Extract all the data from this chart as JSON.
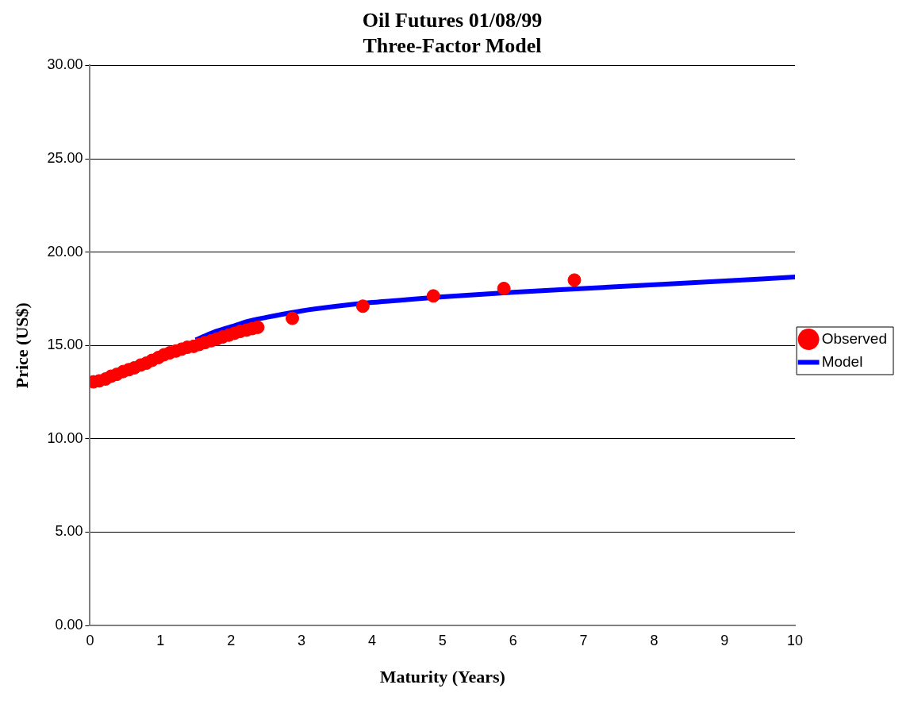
{
  "chart_data": {
    "type": "scatter",
    "title": [
      "Oil Futures 01/08/99",
      "Three-Factor Model"
    ],
    "xlabel": "Maturity (Years)",
    "ylabel": "Price (US$)",
    "xlim": [
      0,
      10
    ],
    "xticks": [
      0,
      1,
      2,
      3,
      4,
      5,
      6,
      7,
      8,
      9,
      10
    ],
    "ylim": [
      0,
      30
    ],
    "yticks": [
      {
        "value": 0,
        "label": "0.00"
      },
      {
        "value": 5,
        "label": "5.00"
      },
      {
        "value": 10,
        "label": "10.00"
      },
      {
        "value": 15,
        "label": "15.00"
      },
      {
        "value": 20,
        "label": "20.00"
      },
      {
        "value": 25,
        "label": "25.00"
      },
      {
        "value": 30,
        "label": "30.00"
      }
    ],
    "grid": "y",
    "legend": "right",
    "series": [
      {
        "name": "Observed",
        "marker": "circle",
        "color": "#ff0000",
        "x": [
          0.05,
          0.13,
          0.22,
          0.3,
          0.38,
          0.47,
          0.55,
          0.63,
          0.72,
          0.8,
          0.88,
          0.97,
          1.05,
          1.13,
          1.22,
          1.3,
          1.38,
          1.47,
          1.55,
          1.63,
          1.72,
          1.8,
          1.88,
          1.97,
          2.05,
          2.13,
          2.22,
          2.3,
          2.38,
          2.87,
          3.87,
          4.87,
          5.87,
          6.87
        ],
        "values": [
          13.05,
          13.1,
          13.2,
          13.35,
          13.45,
          13.6,
          13.7,
          13.8,
          13.95,
          14.05,
          14.2,
          14.35,
          14.5,
          14.6,
          14.7,
          14.8,
          14.9,
          14.95,
          15.05,
          15.15,
          15.25,
          15.35,
          15.45,
          15.55,
          15.65,
          15.75,
          15.82,
          15.9,
          15.97,
          16.45,
          17.1,
          17.65,
          18.05,
          18.5
        ]
      },
      {
        "name": "Model",
        "type": "line",
        "marker": "none",
        "line_style": "solid",
        "color": "#0000ff",
        "x": [
          1.5,
          1.75,
          2,
          2.25,
          2.5,
          3,
          3.5,
          4,
          4.5,
          5,
          6,
          7,
          8,
          9,
          10
        ],
        "values": [
          15.3,
          15.7,
          16.0,
          16.3,
          16.5,
          16.85,
          17.1,
          17.3,
          17.45,
          17.6,
          17.85,
          18.05,
          18.25,
          18.45,
          18.66
        ]
      }
    ]
  }
}
